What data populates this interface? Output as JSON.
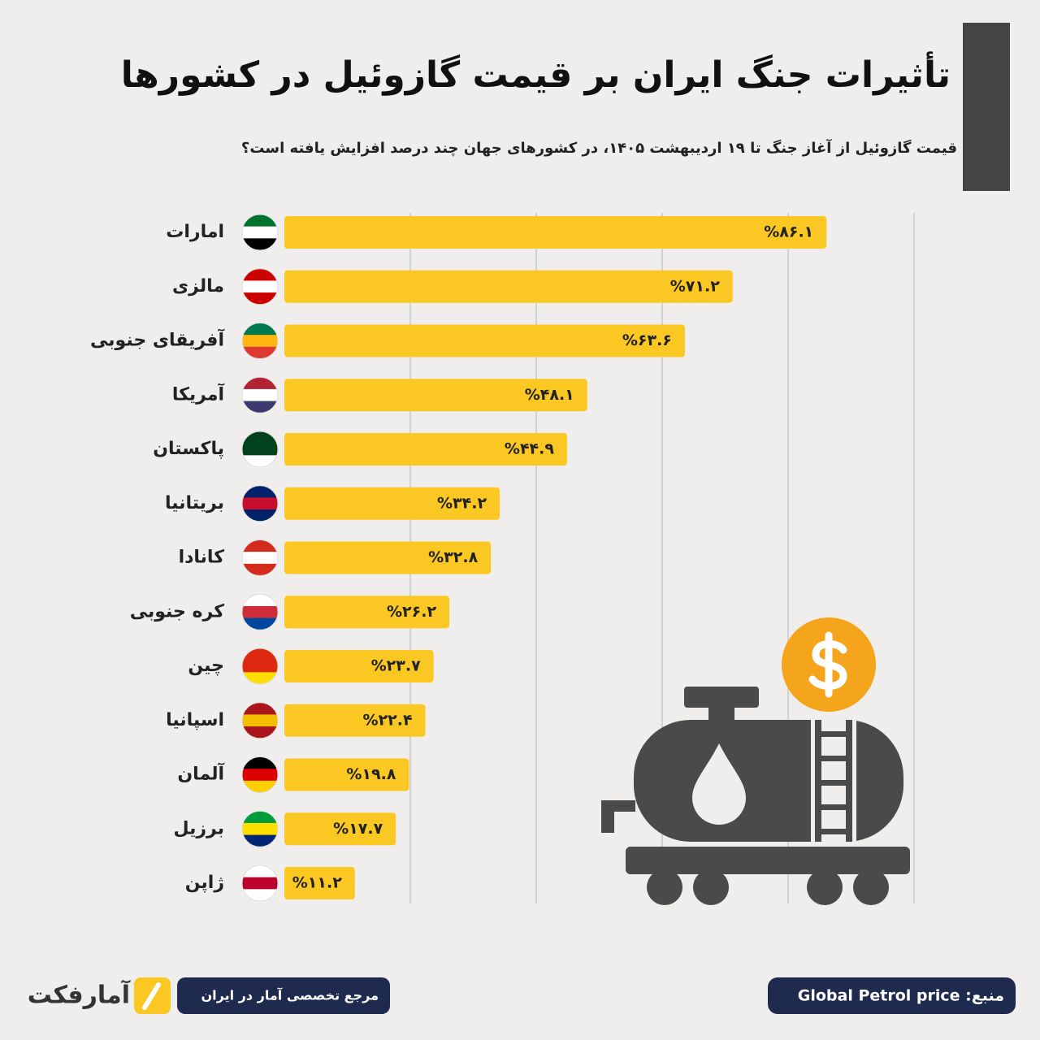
{
  "chart_data": {
    "type": "hbar",
    "title": "تأثیرات جنگ ایران بر قیمت گازوئیل در کشورها",
    "subtitle": "قیمت گازوئیل از آغاز جنگ تا ۱۹ اردیبهشت ۱۴۰۵، در کشورهای جهان چند درصد افزایش یافته است؟",
    "categories": [
      "امارات",
      "مالزی",
      "آفریقای جنوبی",
      "آمریکا",
      "پاکستان",
      "بریتانیا",
      "کانادا",
      "کره جنوبی",
      "چین",
      "اسپانیا",
      "آلمان",
      "برزیل",
      "ژاپن"
    ],
    "values": [
      86.1,
      71.2,
      63.6,
      48.1,
      44.9,
      34.2,
      32.8,
      26.2,
      23.7,
      22.4,
      19.8,
      17.7,
      11.2
    ],
    "value_labels": [
      "%۸۶.۱",
      "%۷۱.۲",
      "%۶۳.۶",
      "%۴۸.۱",
      "%۴۴.۹",
      "%۳۴.۲",
      "%۳۲.۸",
      "%۲۶.۲",
      "%۲۳.۷",
      "%۲۲.۴",
      "%۱۹.۸",
      "%۱۷.۷",
      "%۱۱.۲"
    ],
    "color": "#fbc823",
    "xlim": [
      0,
      100
    ],
    "xticks": [
      20,
      40,
      60,
      80,
      100
    ],
    "grid": true,
    "brand": "آمارفکت",
    "tagline": "مرجع تخصصی آمار در ایران",
    "source": "منبع: Global Petrol price"
  }
}
